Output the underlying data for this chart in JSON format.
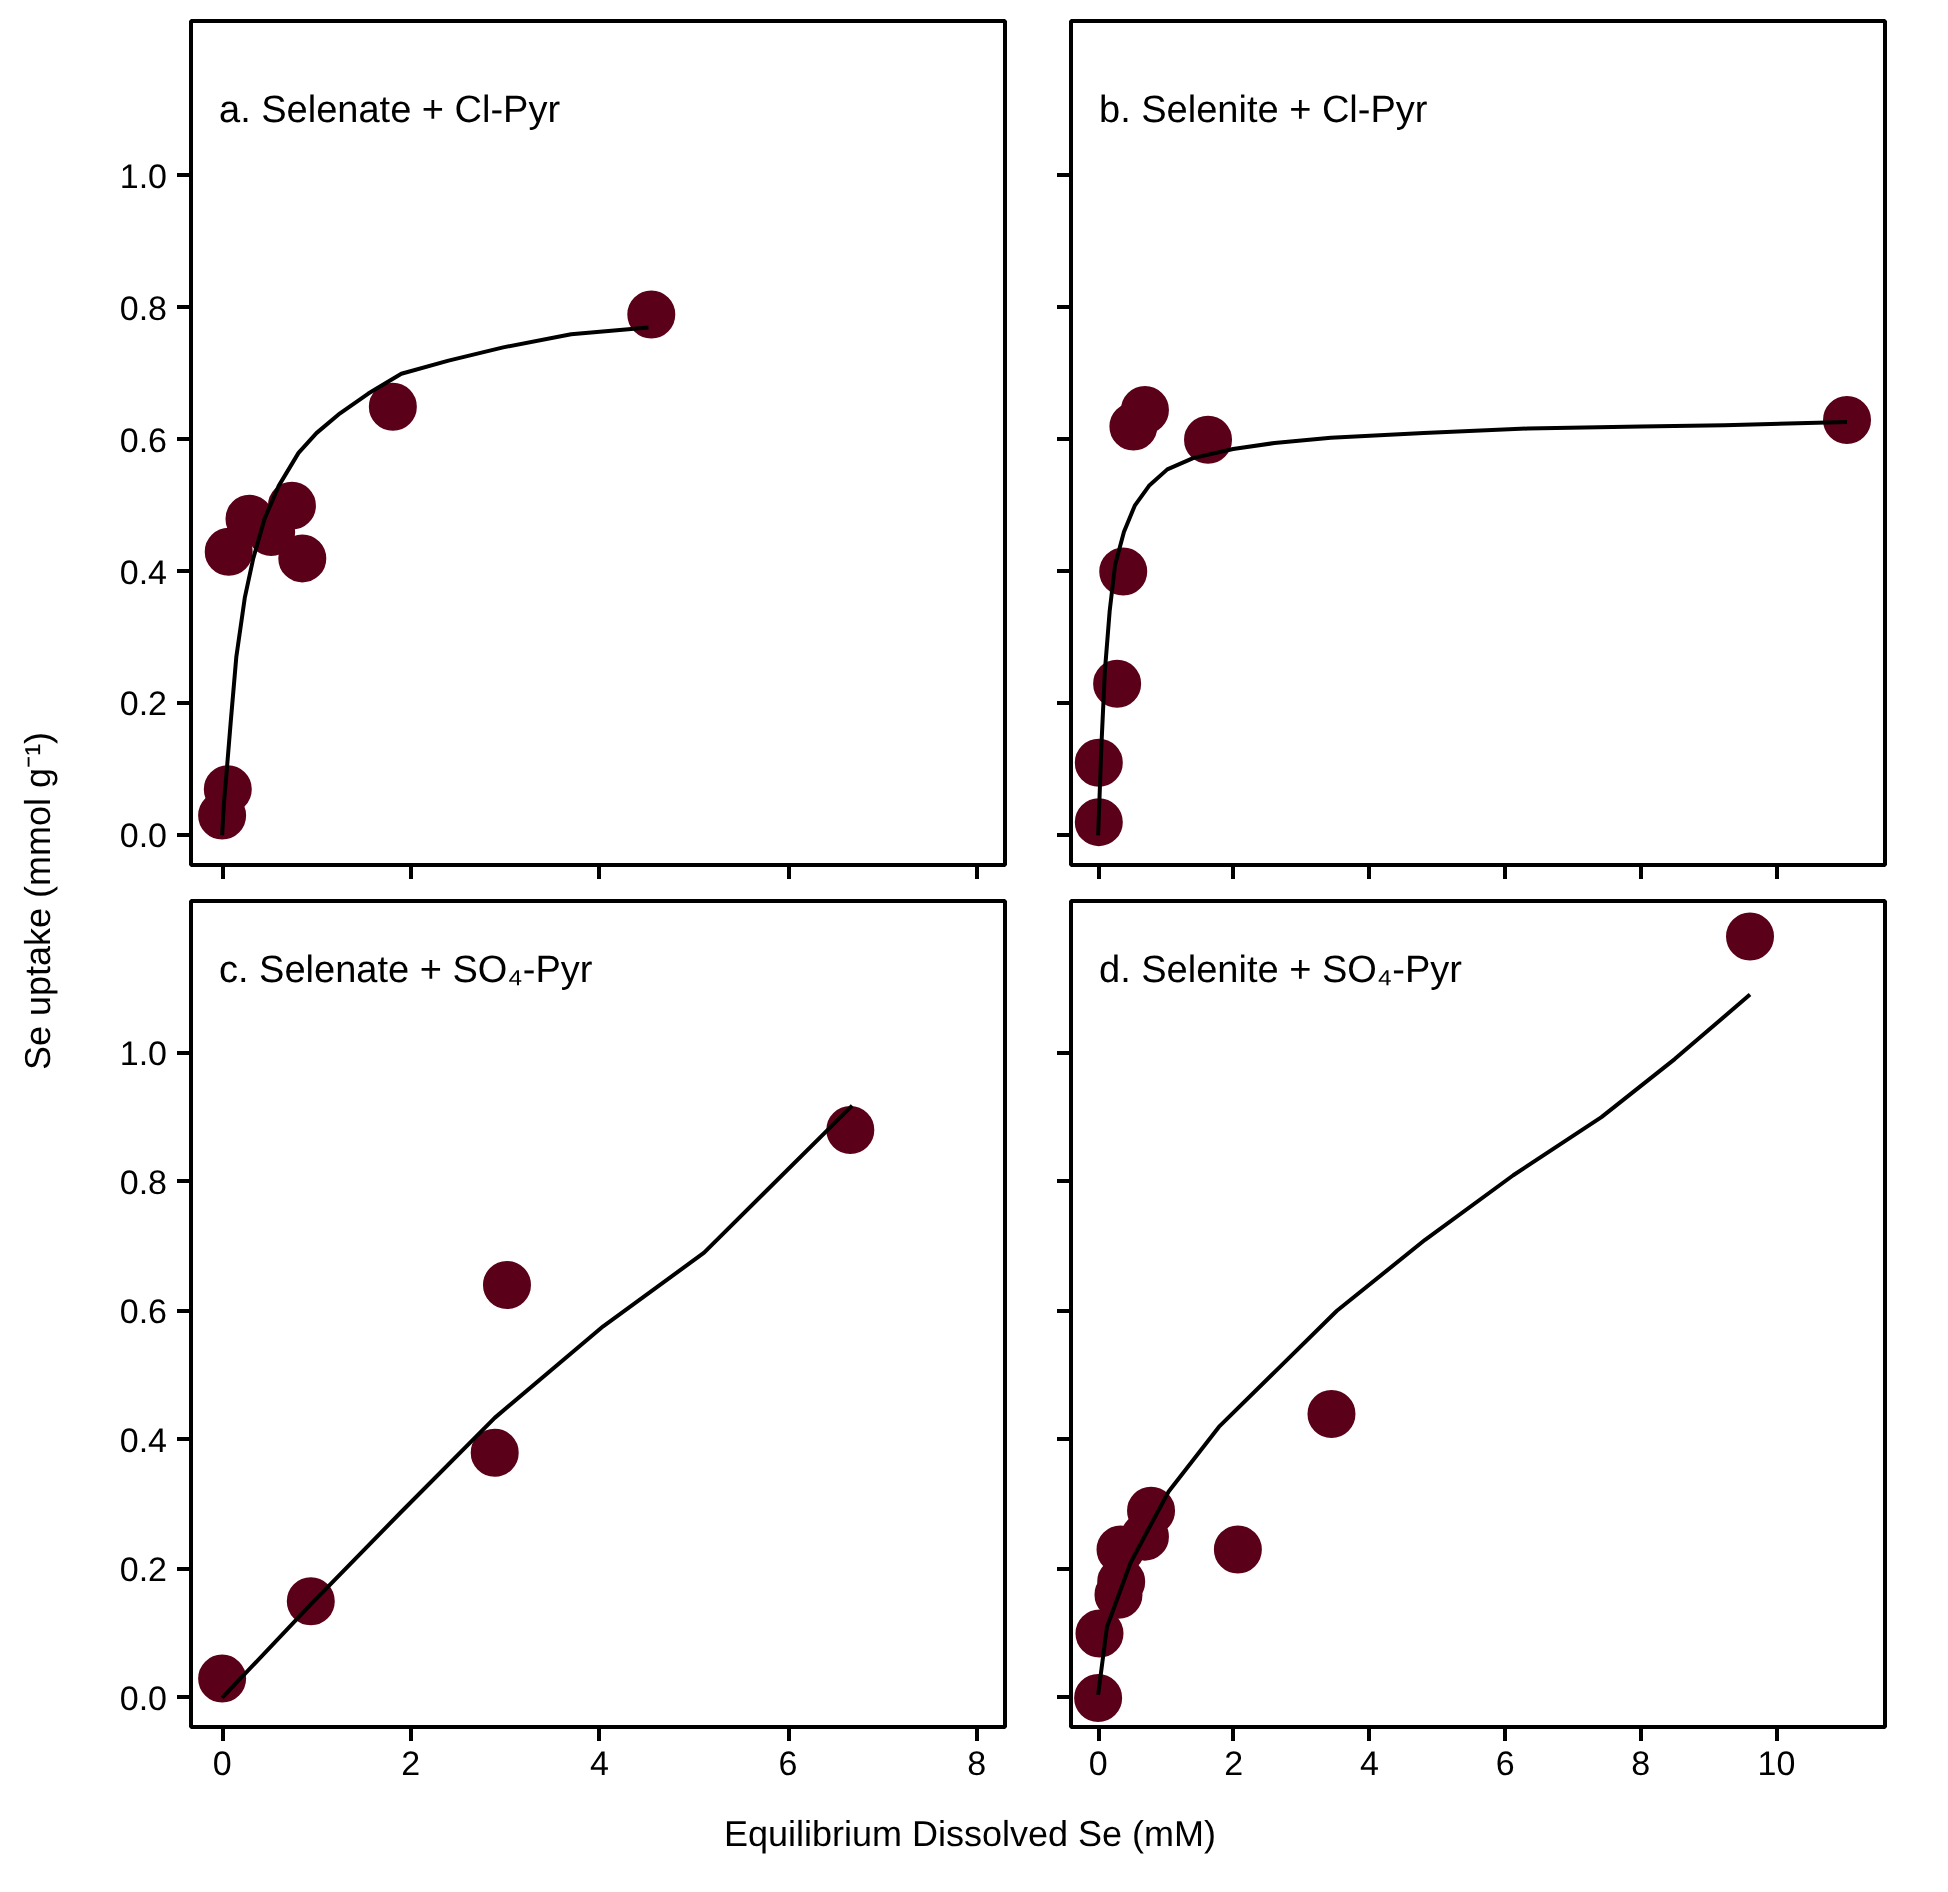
{
  "chart_data": [
    {
      "type": "scatter",
      "title": "a. Selenate + Cl-Pyr",
      "ylabel": "Se uptake (mmol g⁻¹)",
      "xlim": [
        -0.33,
        8.3
      ],
      "ylim": [
        -0.045,
        1.235
      ],
      "xticks": [
        0,
        2,
        4,
        6,
        8
      ],
      "yticks": [
        {
          "value": 0,
          "label": "0.0"
        },
        {
          "value": 0.2,
          "label": "0.2"
        },
        {
          "value": 0.4,
          "label": "0.4"
        },
        {
          "value": 0.6,
          "label": "0.6"
        },
        {
          "value": 0.8,
          "label": "0.8"
        },
        {
          "value": 1.0,
          "label": "1.0"
        }
      ],
      "tick_labels": "y",
      "series": [
        {
          "marker": "circle",
          "color": "#5b0019",
          "x": [
            0,
            0.06,
            0.07,
            0.29,
            0.52,
            0.74,
            0.85,
            1.81,
            4.55
          ],
          "values": [
            0.03,
            0.07,
            0.43,
            0.48,
            0.46,
            0.5,
            0.42,
            0.65,
            0.79
          ]
        },
        {
          "type": "line",
          "color": "#000000",
          "x": [
            0,
            0.02,
            0.05,
            0.09,
            0.15,
            0.24,
            0.33,
            0.45,
            0.6,
            0.81,
            1.0,
            1.25,
            1.55,
            1.9,
            2.4,
            2.98,
            3.7,
            4.52
          ],
          "values": [
            0,
            0.05,
            0.1,
            0.17,
            0.27,
            0.36,
            0.42,
            0.48,
            0.53,
            0.58,
            0.61,
            0.64,
            0.67,
            0.7,
            0.72,
            0.74,
            0.76,
            0.77
          ]
        }
      ]
    },
    {
      "type": "scatter",
      "title": "b. Selenite + Cl-Pyr",
      "xlim": [
        -0.4,
        11.6
      ],
      "ylim": [
        -0.045,
        1.235
      ],
      "xticks": [
        0,
        2,
        4,
        6,
        8,
        10
      ],
      "yticks": [
        0,
        0.2,
        0.4,
        0.6,
        0.8,
        1.0
      ],
      "tick_labels": false,
      "series": [
        {
          "marker": "circle",
          "color": "#5b0019",
          "x": [
            0.01,
            0.01,
            0.28,
            0.37,
            0.52,
            0.69,
            1.62,
            11.04
          ],
          "values": [
            0.02,
            0.11,
            0.23,
            0.4,
            0.62,
            0.645,
            0.6,
            0.63
          ]
        },
        {
          "type": "line",
          "color": "#000000",
          "x": [
            0,
            0.05,
            0.1,
            0.17,
            0.25,
            0.38,
            0.54,
            0.75,
            1.02,
            1.4,
            1.99,
            2.6,
            3.43,
            4.8,
            6.33,
            8.0,
            9.23,
            11.04
          ],
          "values": [
            0,
            0.14,
            0.25,
            0.34,
            0.41,
            0.46,
            0.5,
            0.53,
            0.555,
            0.572,
            0.586,
            0.595,
            0.603,
            0.61,
            0.617,
            0.62,
            0.622,
            0.627
          ]
        }
      ]
    },
    {
      "type": "scatter",
      "title": "c. Selenate + SO₄-Pyr",
      "xlabel": "Equilibrium Dissolved Se (mM)",
      "xlim": [
        -0.33,
        8.3
      ],
      "ylim": [
        -0.045,
        1.235
      ],
      "xticks": [
        0,
        2,
        4,
        6,
        8
      ],
      "yticks": [
        {
          "value": 0,
          "label": "0.0"
        },
        {
          "value": 0.2,
          "label": "0.2"
        },
        {
          "value": 0.4,
          "label": "0.4"
        },
        {
          "value": 0.6,
          "label": "0.6"
        },
        {
          "value": 0.8,
          "label": "0.8"
        },
        {
          "value": 1.0,
          "label": "1.0"
        }
      ],
      "series": [
        {
          "marker": "circle",
          "color": "#5b0019",
          "x": [
            0,
            0.94,
            2.89,
            3.02,
            6.66
          ],
          "values": [
            0.03,
            0.15,
            0.38,
            0.64,
            0.88
          ]
        },
        {
          "type": "line",
          "color": "#000000",
          "x": [
            0,
            0.94,
            1.89,
            2.89,
            4.04,
            5.11,
            6.68
          ],
          "values": [
            0,
            0.145,
            0.287,
            0.434,
            0.576,
            0.69,
            0.918
          ]
        }
      ]
    },
    {
      "type": "scatter",
      "title": "d. Selenite + SO₄-Pyr",
      "xlim": [
        -0.4,
        11.6
      ],
      "ylim": [
        -0.045,
        1.235
      ],
      "xticks": [
        0,
        2,
        4,
        6,
        8,
        10
      ],
      "yticks": [
        0,
        0.2,
        0.4,
        0.6,
        0.8,
        1.0
      ],
      "tick_labels": "x",
      "series": [
        {
          "marker": "circle",
          "color": "#5b0019",
          "x": [
            0,
            0.02,
            0.3,
            0.34,
            0.33,
            0.69,
            0.78,
            2.06,
            3.44,
            9.61
          ],
          "values": [
            0,
            0.1,
            0.16,
            0.18,
            0.23,
            0.25,
            0.29,
            0.23,
            0.44,
            1.18
          ]
        },
        {
          "type": "line",
          "color": "#000000",
          "x": [
            0,
            0.13,
            0.48,
            1.04,
            1.78,
            2.65,
            3.52,
            4.82,
            6.12,
            7.42,
            8.5,
            9.61
          ],
          "values": [
            0.005,
            0.11,
            0.21,
            0.32,
            0.42,
            0.51,
            0.6,
            0.71,
            0.81,
            0.9,
            0.99,
            1.09
          ]
        }
      ]
    }
  ]
}
